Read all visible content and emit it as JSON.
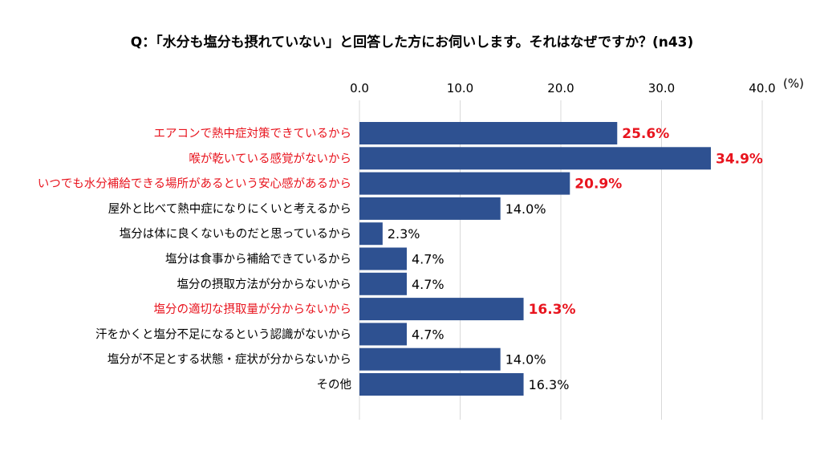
{
  "chart_data": {
    "type": "bar",
    "orientation": "horizontal",
    "title": "Q：「水分も塩分も摂れていない」と回答した方にお伺いします。それはなぜですか？(n43)",
    "unit_label": "(%)",
    "xlim": [
      0,
      40
    ],
    "ticks": [
      0,
      10,
      20,
      30,
      40
    ],
    "tick_labels": [
      "0.0",
      "10.0",
      "20.0",
      "30.0",
      "40.0"
    ],
    "categories": [
      "エアコンで熱中症対策できているから",
      "喉が乾いている感覚がないから",
      "いつでも水分補給できる場所があるという安心感があるから",
      "屋外と比べて熱中症になりにくいと考えるから",
      "塩分は体に良くないものだと思っているから",
      "塩分は食事から補給できているから",
      "塩分の摂取方法が分からないから",
      "塩分の適切な摂取量が分からないから",
      "汗をかくと塩分不足になるという認識がないから",
      "塩分が不足とする状態・症状が分からないから",
      "その他"
    ],
    "values": [
      25.6,
      34.9,
      20.9,
      14.0,
      2.3,
      4.7,
      4.7,
      16.3,
      4.7,
      14.0,
      16.3
    ],
    "value_labels": [
      "25.6%",
      "34.9%",
      "20.9%",
      "14.0%",
      "2.3%",
      "4.7%",
      "4.7%",
      "16.3%",
      "4.7%",
      "14.0%",
      "16.3%"
    ],
    "highlighted": [
      true,
      true,
      true,
      false,
      false,
      false,
      false,
      true,
      false,
      false,
      false
    ],
    "colors": {
      "bar": "#2e5191",
      "highlight_text": "#e8141e",
      "normal_text": "#000000",
      "grid": "#d9d9d9"
    }
  }
}
